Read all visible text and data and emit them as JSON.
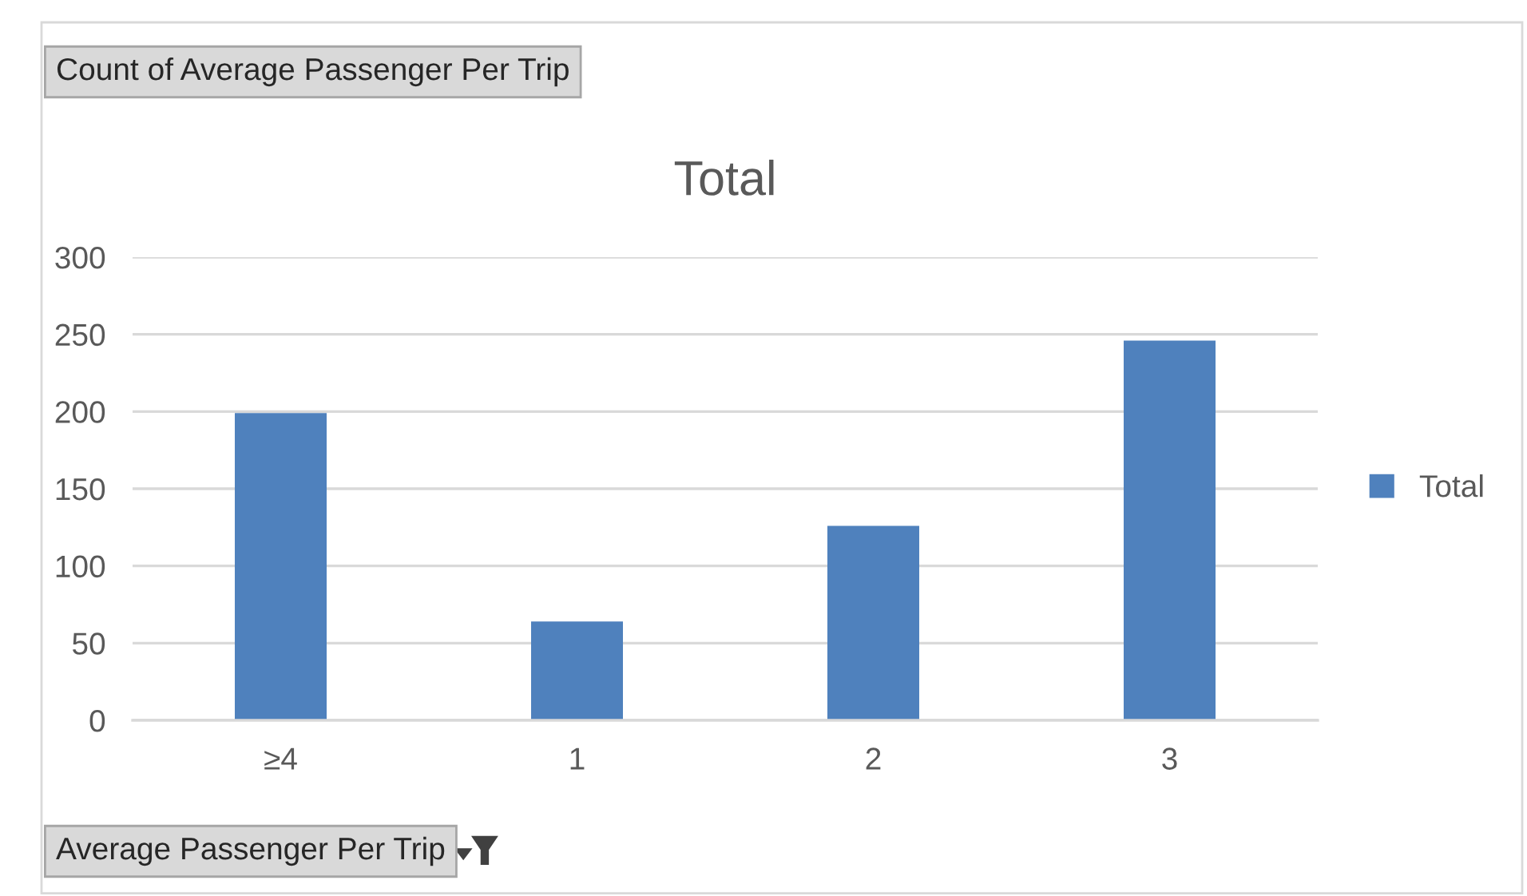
{
  "chart_data": {
    "type": "bar",
    "title": "Total",
    "categories": [
      "≥4",
      "1",
      "2",
      "3"
    ],
    "series": [
      {
        "name": "Total",
        "color": "#4f81bd",
        "values": [
          199,
          64,
          126,
          246
        ]
      }
    ],
    "ylim": [
      0,
      300
    ],
    "yticks": [
      0,
      50,
      100,
      150,
      200,
      250,
      300
    ],
    "grid": "y",
    "legend": "right",
    "annotations": [
      "Count of Average Passenger Per Trip",
      "Average Passenger Per Trip"
    ]
  }
}
